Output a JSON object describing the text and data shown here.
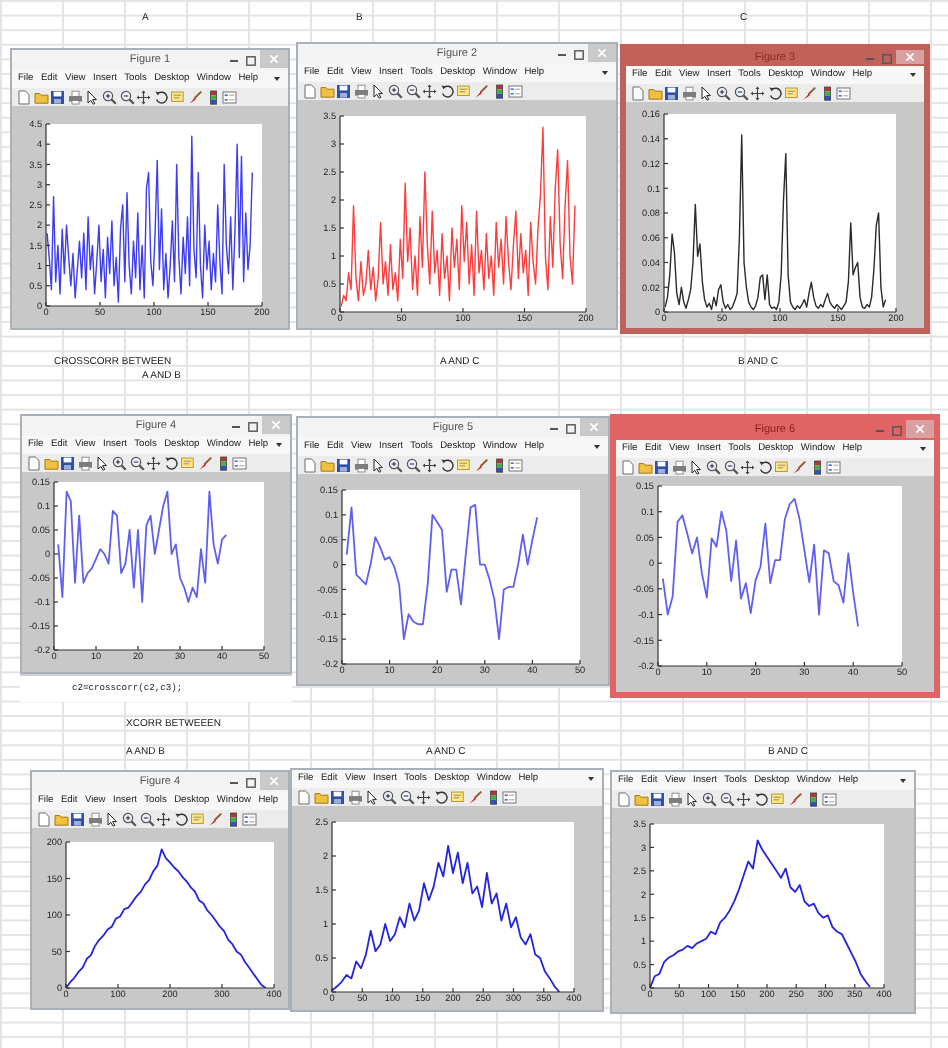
{
  "chart_data": [
    {
      "type": "line",
      "title": "Figure 1",
      "subtitle": "A",
      "annotations": [
        "File Edit View Insert Tools Desktop Window Help"
      ],
      "x": [
        1,
        3,
        5,
        7,
        9,
        11,
        13,
        15,
        17,
        19,
        21,
        23,
        25,
        27,
        29,
        31,
        33,
        35,
        37,
        39,
        41,
        43,
        45,
        47,
        49,
        51,
        53,
        55,
        57,
        59,
        61,
        63,
        65,
        67,
        69,
        71,
        73,
        75,
        77,
        79,
        81,
        83,
        85,
        87,
        89,
        91,
        93,
        95,
        97,
        99,
        101,
        103,
        105,
        107,
        109,
        111,
        113,
        115,
        117,
        119,
        121,
        123,
        125,
        127,
        129,
        131,
        133,
        135,
        137,
        139,
        141,
        143,
        145,
        147,
        149,
        151,
        153,
        155,
        157,
        159,
        161,
        163,
        165,
        167,
        169,
        171,
        173,
        175,
        177,
        179,
        181,
        183,
        185,
        187,
        189,
        191
      ],
      "series": [
        {
          "color": "#3c3cf0",
          "values": [
            1.8,
            1.2,
            0.4,
            2.7,
            0.6,
            1.5,
            0.3,
            1.9,
            0.8,
            2.0,
            1.2,
            0.5,
            1.3,
            0.2,
            0.9,
            1.6,
            0.7,
            1.8,
            0.4,
            2.2,
            0.9,
            1.5,
            0.3,
            1.1,
            2.0,
            0.6,
            1.4,
            0.2,
            1.7,
            0.8,
            2.1,
            0.5,
            1.2,
            0.1,
            1.9,
            2.5,
            0.6,
            2.8,
            1.0,
            0.3,
            1.6,
            0.7,
            2.3,
            0.4,
            1.5,
            0.2,
            2.9,
            3.3,
            1.1,
            0.5,
            1.8,
            3.6,
            0.9,
            2.4,
            0.4,
            1.3,
            0.2,
            1.0,
            2.1,
            0.6,
            3.5,
            1.2,
            0.3,
            1.7,
            0.8,
            2.2,
            0.5,
            4.2,
            1.4,
            0.7,
            3.3,
            1.0,
            0.2,
            2.0,
            0.9,
            1.6,
            0.4,
            1.3,
            0.6,
            2.5,
            1.1,
            0.3,
            3.5,
            1.5,
            0.8,
            2.2,
            0.4,
            1.9,
            4.0,
            1.2,
            3.7,
            0.6,
            2.3,
            0.9,
            1.5,
            3.3
          ]
        }
      ],
      "xlim": [
        0,
        200
      ],
      "xticks": [
        0,
        50,
        100,
        150,
        200
      ],
      "ylim": [
        0,
        4.5
      ],
      "yticks": [
        0,
        0.5,
        1,
        1.5,
        2,
        2.5,
        3,
        3.5,
        4,
        4.5
      ]
    },
    {
      "type": "line",
      "title": "Figure 2",
      "subtitle": "B",
      "annotations": [
        "File Edit View Insert Tools Desktop Window Help"
      ],
      "x": [
        1,
        3,
        5,
        7,
        9,
        11,
        13,
        15,
        17,
        19,
        21,
        23,
        25,
        27,
        29,
        31,
        33,
        35,
        37,
        39,
        41,
        43,
        45,
        47,
        49,
        51,
        53,
        55,
        57,
        59,
        61,
        63,
        65,
        67,
        69,
        71,
        73,
        75,
        77,
        79,
        81,
        83,
        85,
        87,
        89,
        91,
        93,
        95,
        97,
        99,
        101,
        103,
        105,
        107,
        109,
        111,
        113,
        115,
        117,
        119,
        121,
        123,
        125,
        127,
        129,
        131,
        133,
        135,
        137,
        139,
        141,
        143,
        145,
        147,
        149,
        151,
        153,
        155,
        157,
        159,
        161,
        163,
        165,
        167,
        169,
        171,
        173,
        175,
        177,
        179,
        181,
        183,
        185,
        187,
        189,
        191
      ],
      "series": [
        {
          "color": "#ff3b3b",
          "values": [
            0.1,
            0.3,
            0.2,
            0.7,
            0.4,
            1.9,
            0.6,
            0.2,
            0.9,
            0.3,
            0.5,
            1.1,
            0.4,
            0.8,
            0.2,
            0.6,
            1.6,
            0.5,
            0.9,
            0.3,
            1.2,
            0.4,
            0.7,
            0.2,
            1.3,
            0.6,
            2.3,
            0.9,
            1.5,
            0.4,
            1.0,
            0.3,
            1.7,
            0.8,
            2.5,
            1.2,
            0.5,
            1.8,
            0.7,
            1.1,
            0.3,
            1.4,
            0.6,
            1.0,
            0.2,
            1.5,
            0.8,
            1.3,
            0.4,
            1.9,
            0.9,
            1.6,
            0.5,
            1.2,
            0.3,
            1.8,
            0.7,
            1.1,
            0.4,
            1.4,
            0.6,
            1.0,
            0.3,
            1.6,
            0.8,
            1.3,
            0.5,
            1.7,
            0.9,
            0.4,
            1.2,
            1.8,
            0.6,
            1.4,
            0.7,
            1.1,
            0.3,
            1.6,
            0.9,
            0.5,
            1.5,
            2.1,
            3.3,
            1.0,
            0.4,
            1.7,
            0.8,
            2.2,
            2.9,
            1.2,
            0.6,
            1.9,
            2.7,
            1.0,
            0.5,
            1.9
          ]
        }
      ],
      "xlim": [
        0,
        200
      ],
      "xticks": [
        0,
        50,
        100,
        150,
        200
      ],
      "ylim": [
        0,
        3.5
      ],
      "yticks": [
        0,
        0.5,
        1,
        1.5,
        2,
        2.5,
        3,
        3.5
      ]
    },
    {
      "type": "line",
      "title": "Figure 3",
      "subtitle": "C",
      "annotations": [
        "File Edit View Insert Tools Desktop Window Help"
      ],
      "x": [
        1,
        3,
        5,
        7,
        9,
        11,
        13,
        15,
        17,
        19,
        21,
        23,
        25,
        27,
        29,
        31,
        33,
        35,
        37,
        39,
        41,
        43,
        45,
        47,
        49,
        51,
        53,
        55,
        57,
        59,
        61,
        63,
        65,
        67,
        69,
        71,
        73,
        75,
        77,
        79,
        81,
        83,
        85,
        87,
        89,
        91,
        93,
        95,
        97,
        99,
        101,
        103,
        105,
        107,
        109,
        111,
        113,
        115,
        117,
        119,
        121,
        123,
        125,
        127,
        129,
        131,
        133,
        135,
        137,
        139,
        141,
        143,
        145,
        147,
        149,
        151,
        153,
        155,
        157,
        159,
        161,
        163,
        165,
        167,
        169,
        171,
        173,
        175,
        177,
        179,
        181,
        183,
        185,
        187,
        189,
        191
      ],
      "series": [
        {
          "color": "#2a2a2a",
          "values": [
            0.004,
            0.012,
            0.03,
            0.063,
            0.048,
            0.015,
            0.006,
            0.02,
            0.008,
            0.003,
            0.01,
            0.018,
            0.04,
            0.087,
            0.045,
            0.055,
            0.025,
            0.01,
            0.004,
            0.007,
            0.002,
            0.012,
            0.005,
            0.018,
            0.022,
            0.008,
            0.003,
            0.006,
            0.002,
            0.004,
            0.009,
            0.015,
            0.06,
            0.143,
            0.04,
            0.02,
            0.008,
            0.004,
            0.002,
            0.005,
            0.012,
            0.028,
            0.03,
            0.01,
            0.03,
            0.006,
            0.003,
            0.004,
            0.002,
            0.008,
            0.03,
            0.09,
            0.128,
            0.03,
            0.008,
            0.004,
            0.002,
            0.005,
            0.003,
            0.006,
            0.01,
            0.004,
            0.015,
            0.024,
            0.012,
            0.005,
            0.003,
            0.006,
            0.004,
            0.01,
            0.015,
            0.008,
            0.005,
            0.003,
            0.006,
            0.004,
            0.002,
            0.005,
            0.008,
            0.025,
            0.072,
            0.03,
            0.036,
            0.04,
            0.012,
            0.004,
            0.003,
            0.006,
            0.004,
            0.012,
            0.035,
            0.07,
            0.08,
            0.02,
            0.004,
            0.01
          ]
        }
      ],
      "xlim": [
        0,
        200
      ],
      "xticks": [
        0,
        50,
        100,
        150,
        200
      ],
      "ylim": [
        0,
        0.16
      ],
      "yticks": [
        0,
        0.02,
        0.04,
        0.06,
        0.08,
        0.1,
        0.12,
        0.14,
        0.16
      ]
    },
    {
      "type": "line",
      "title": "Figure 4",
      "subtitle": "CROSSCORR BETWEEN\nA AND B",
      "annotations": [
        "File Edit View Insert Tools Desktop Window Help",
        "c2=crosscorr(c2,c3);"
      ],
      "x": [
        1,
        2,
        3,
        4,
        5,
        6,
        7,
        8,
        9,
        10,
        11,
        12,
        13,
        14,
        15,
        16,
        17,
        18,
        19,
        20,
        21,
        22,
        23,
        24,
        25,
        26,
        27,
        28,
        29,
        30,
        31,
        32,
        33,
        34,
        35,
        36,
        37,
        38,
        39,
        40,
        41
      ],
      "series": [
        {
          "color": "#6060f0",
          "values": [
            0.02,
            -0.09,
            0.13,
            0.11,
            -0.06,
            0.08,
            -0.06,
            -0.04,
            -0.03,
            -0.01,
            0.01,
            0,
            -0.02,
            0.09,
            0.08,
            -0.04,
            -0.02,
            0.05,
            -0.07,
            0.05,
            -0.1,
            0.06,
            0.08,
            0,
            0.05,
            0.1,
            0.13,
            0,
            0.02,
            -0.05,
            -0.07,
            -0.1,
            -0.07,
            -0.09,
            0.01,
            -0.06,
            0.13,
            0.02,
            -0.02,
            0.03,
            0.04
          ]
        }
      ],
      "xlim": [
        0,
        50
      ],
      "xticks": [
        0,
        10,
        20,
        30,
        40,
        50
      ],
      "ylim": [
        -0.2,
        0.15
      ],
      "yticks": [
        -0.2,
        -0.15,
        -0.1,
        -0.05,
        0,
        0.05,
        0.1,
        0.15
      ]
    },
    {
      "type": "line",
      "title": "Figure 5",
      "subtitle": "A AND C",
      "annotations": [
        "File Edit View Insert Tools Desktop Window Help"
      ],
      "x": [
        1,
        2,
        3,
        4,
        5,
        6,
        7,
        8,
        9,
        10,
        11,
        12,
        13,
        14,
        15,
        16,
        17,
        18,
        19,
        20,
        21,
        22,
        23,
        24,
        25,
        26,
        27,
        28,
        29,
        30,
        31,
        32,
        33,
        34,
        35,
        36,
        37,
        38,
        39,
        40,
        41
      ],
      "series": [
        {
          "color": "#6060f0",
          "values": [
            0.02,
            0.115,
            -0.02,
            -0.03,
            -0.04,
            0,
            0.055,
            0.035,
            0.01,
            0.015,
            -0.005,
            -0.04,
            -0.15,
            -0.1,
            -0.115,
            -0.12,
            -0.12,
            -0.04,
            0.1,
            0.085,
            0.07,
            -0.055,
            -0.01,
            -0.01,
            -0.08,
            0.02,
            0.115,
            0.12,
            0,
            0,
            -0.03,
            -0.07,
            -0.15,
            -0.05,
            -0.045,
            -0.045,
            0,
            0.06,
            0,
            0.05,
            0.095
          ]
        }
      ],
      "xlim": [
        0,
        50
      ],
      "xticks": [
        0,
        10,
        20,
        30,
        40,
        50
      ],
      "ylim": [
        -0.2,
        0.15
      ],
      "yticks": [
        -0.2,
        -0.15,
        -0.1,
        -0.05,
        0,
        0.05,
        0.1,
        0.15
      ]
    },
    {
      "type": "line",
      "title": "Figure 6",
      "subtitle": "B AND C",
      "annotations": [
        "File Edit View Insert Tools Desktop Window Help"
      ],
      "x": [
        1,
        2,
        3,
        4,
        5,
        6,
        7,
        8,
        9,
        10,
        11,
        12,
        13,
        14,
        15,
        16,
        17,
        18,
        19,
        20,
        21,
        22,
        23,
        24,
        25,
        26,
        27,
        28,
        29,
        30,
        31,
        32,
        33,
        34,
        35,
        36,
        37,
        38,
        39,
        40,
        41
      ],
      "series": [
        {
          "color": "#6060f0",
          "values": [
            -0.03,
            -0.1,
            -0.065,
            0.08,
            0.093,
            0.057,
            0.019,
            0.05,
            -0.02,
            -0.067,
            0.048,
            0.032,
            0.1,
            0.063,
            -0.035,
            0.044,
            -0.069,
            -0.039,
            -0.097,
            -0.033,
            -0.007,
            0.077,
            -0.039,
            0.006,
            0.006,
            0.086,
            0.115,
            0.125,
            0.086,
            0.025,
            -0.037,
            0.036,
            -0.1,
            0.025,
            0.019,
            -0.035,
            -0.043,
            -0.077,
            0.019,
            -0.058,
            -0.123
          ]
        }
      ],
      "xlim": [
        0,
        50
      ],
      "xticks": [
        0,
        10,
        20,
        30,
        40,
        50
      ],
      "ylim": [
        -0.2,
        0.15
      ],
      "yticks": [
        -0.2,
        -0.15,
        -0.1,
        -0.05,
        0,
        0.05,
        0.1,
        0.15
      ]
    },
    {
      "type": "line",
      "title": "Figure 4",
      "subtitle": "XCORR BETWEEEN\nA AND B",
      "annotations": [
        "File Edit View Insert Tools Desktop Window Help"
      ],
      "x": [
        0,
        8,
        16,
        24,
        32,
        40,
        48,
        56,
        64,
        72,
        80,
        88,
        96,
        104,
        112,
        120,
        128,
        136,
        144,
        152,
        160,
        168,
        176,
        184,
        192,
        200,
        208,
        216,
        224,
        232,
        240,
        248,
        256,
        264,
        272,
        280,
        288,
        296,
        304,
        312,
        320,
        328,
        336,
        344,
        352,
        360,
        368,
        376,
        384
      ],
      "series": [
        {
          "color": "#2424e0",
          "values": [
            0,
            8,
            14,
            22,
            28,
            40,
            45,
            58,
            66,
            72,
            80,
            84,
            95,
            98,
            108,
            110,
            118,
            126,
            132,
            142,
            148,
            160,
            168,
            190,
            178,
            172,
            165,
            160,
            152,
            146,
            138,
            132,
            120,
            116,
            106,
            100,
            92,
            84,
            78,
            66,
            60,
            50,
            46,
            36,
            28,
            20,
            12,
            4,
            0
          ]
        }
      ],
      "xlim": [
        0,
        400
      ],
      "xticks": [
        0,
        100,
        200,
        300,
        400
      ],
      "ylim": [
        0,
        200
      ],
      "yticks": [
        0,
        50,
        100,
        150,
        200
      ]
    },
    {
      "type": "line",
      "subtitle": "A AND C",
      "annotations": [
        "File Edit View Insert Tools Desktop Window Help"
      ],
      "x": [
        0,
        8,
        16,
        24,
        32,
        40,
        48,
        56,
        64,
        72,
        80,
        88,
        96,
        104,
        112,
        120,
        128,
        136,
        144,
        152,
        160,
        168,
        176,
        184,
        192,
        200,
        208,
        216,
        224,
        232,
        240,
        248,
        256,
        264,
        272,
        280,
        288,
        296,
        304,
        312,
        320,
        328,
        336,
        344,
        352,
        360,
        368,
        376
      ],
      "series": [
        {
          "color": "#2424e0",
          "values": [
            0.02,
            0.08,
            0.15,
            0.25,
            0.2,
            0.45,
            0.35,
            0.55,
            0.9,
            0.6,
            0.7,
            1.0,
            0.75,
            0.85,
            1.1,
            0.95,
            1.3,
            1.05,
            1.2,
            1.6,
            1.35,
            1.55,
            1.9,
            1.7,
            2.15,
            1.75,
            2.05,
            1.6,
            1.9,
            1.45,
            1.55,
            1.25,
            1.75,
            1.3,
            1.45,
            1.05,
            1.3,
            0.95,
            1.1,
            0.8,
            0.7,
            0.85,
            0.55,
            0.5,
            0.3,
            0.2,
            0.08,
            0
          ]
        }
      ],
      "xlim": [
        0,
        400
      ],
      "xticks": [
        0,
        50,
        100,
        150,
        200,
        250,
        300,
        350,
        400
      ],
      "ylim": [
        0,
        2.5
      ],
      "yticks": [
        0,
        0.5,
        1,
        1.5,
        2,
        2.5
      ]
    },
    {
      "type": "line",
      "subtitle": "B AND C",
      "annotations": [
        "File Edit View Insert Tools Desktop Window Help"
      ],
      "x": [
        0,
        8,
        16,
        24,
        32,
        40,
        48,
        56,
        64,
        72,
        80,
        88,
        96,
        104,
        112,
        120,
        128,
        136,
        144,
        152,
        160,
        168,
        176,
        184,
        192,
        200,
        208,
        216,
        224,
        232,
        240,
        248,
        256,
        264,
        272,
        280,
        288,
        296,
        304,
        312,
        320,
        328,
        336,
        344,
        352,
        360,
        368,
        376
      ],
      "series": [
        {
          "color": "#2424e0",
          "values": [
            0,
            0.25,
            0.3,
            0.55,
            0.65,
            0.7,
            0.78,
            0.82,
            0.9,
            0.85,
            0.95,
            1.0,
            1.05,
            1.2,
            1.15,
            1.4,
            1.5,
            1.65,
            1.85,
            2.1,
            2.4,
            2.7,
            2.55,
            3.15,
            2.95,
            2.8,
            2.65,
            2.5,
            2.35,
            2.55,
            2.15,
            2.05,
            2.2,
            1.85,
            1.75,
            1.8,
            1.6,
            1.5,
            1.55,
            1.3,
            1.2,
            1.15,
            0.95,
            0.75,
            0.55,
            0.3,
            0.15,
            0.02
          ]
        }
      ],
      "xlim": [
        0,
        400
      ],
      "xticks": [
        0,
        50,
        100,
        150,
        200,
        250,
        300,
        350,
        400
      ],
      "ylim": [
        0,
        3.5
      ],
      "yticks": [
        0,
        0.5,
        1,
        1.5,
        2,
        2.5,
        3,
        3.5
      ]
    }
  ]
}
